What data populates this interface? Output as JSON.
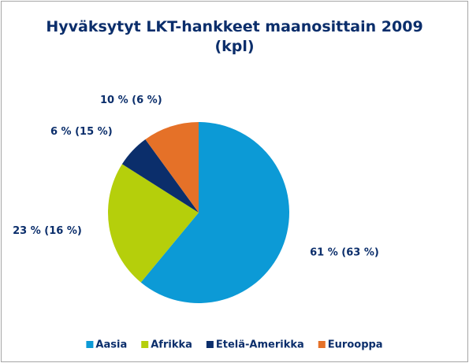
{
  "chart_data": {
    "type": "pie",
    "title": "Hyväksytyt LKT-hankkeet maanosittain 2009 (kpl)",
    "categories": [
      "Aasia",
      "Afrikka",
      "Etelä-Amerikka",
      "Eurooppa"
    ],
    "values": [
      61,
      23,
      6,
      10
    ],
    "value_labels": [
      "61 % (63 %)",
      "23 % (16 %)",
      "6 % (15 %)",
      "10 % (6 %)"
    ],
    "colors": [
      "#0c9ad6",
      "#b5cf0b",
      "#0b2e6b",
      "#e57128"
    ],
    "legend": "bottom"
  }
}
